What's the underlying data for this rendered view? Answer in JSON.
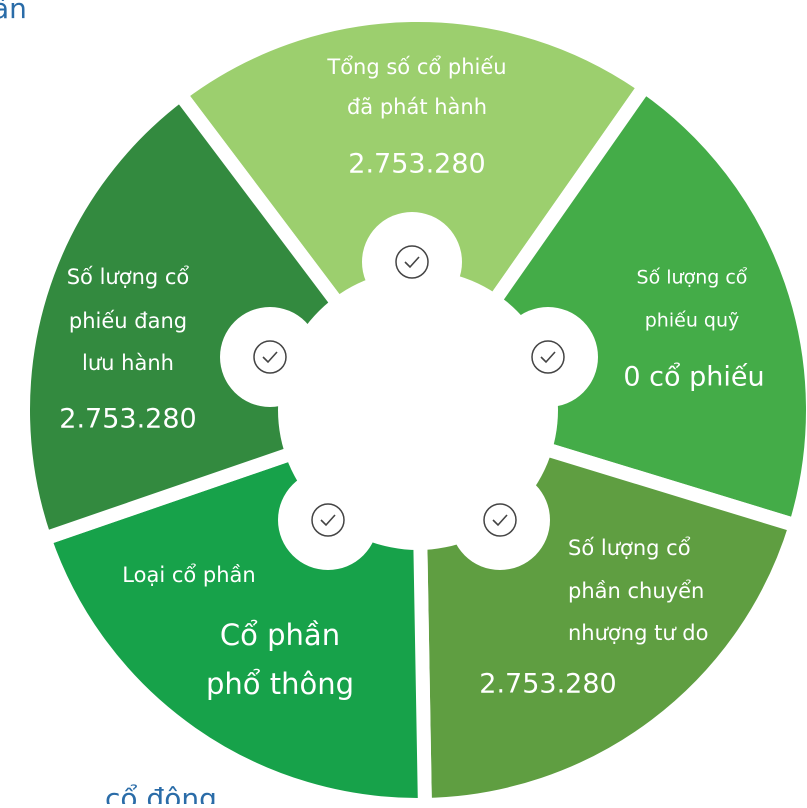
{
  "title_fragment": "ần",
  "footer_fragment": "cổ đông",
  "segments": [
    {
      "label_lines": [
        "Tổng số cổ phiếu",
        "đã phát hành"
      ],
      "value_lines": [
        "2.753.280"
      ]
    },
    {
      "label_lines": [
        "Số lượng cổ",
        "phiếu quỹ"
      ],
      "value_lines": [
        "0 cổ phiếu"
      ]
    },
    {
      "label_lines": [
        "Số lượng cổ",
        "phần chuyển",
        "nhượng tư do"
      ],
      "value_lines": [
        "2.753.280"
      ]
    },
    {
      "label_lines": [
        "Loại cổ phần"
      ],
      "value_lines": [
        "Cổ phần",
        "phổ thông"
      ]
    },
    {
      "label_lines": [
        "Số lượng cổ",
        "phiếu đang",
        "lưu hành"
      ],
      "value_lines": [
        "2.753.280"
      ]
    }
  ]
}
